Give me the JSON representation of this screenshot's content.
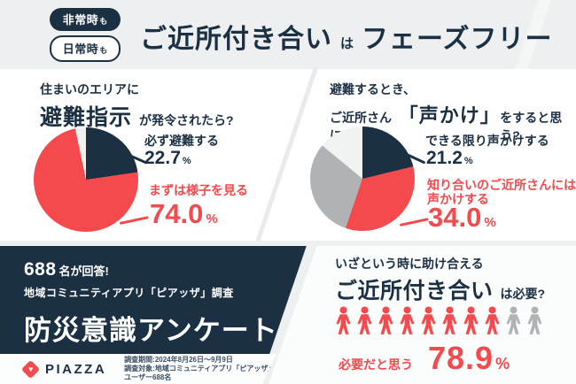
{
  "palette": {
    "navy": "#1c3044",
    "red": "#f4494d",
    "gray": "#b0b3b5",
    "light_slice": "#eff1f1",
    "page_bg": "#edeff0"
  },
  "percent_sign": "%",
  "header": {
    "badges": [
      {
        "main": "非常時",
        "suffix": "も"
      },
      {
        "main": "日常時",
        "suffix": "も"
      }
    ],
    "title": {
      "lead": "ご近所付き合い",
      "particle": "は",
      "tail": "フェーズフリー"
    }
  },
  "poll_left": {
    "question_line1": "住まいのエリアに",
    "question_strong": "避難指示",
    "question_rest": "が発令されたら?",
    "answers": {
      "a": {
        "label": "必ず避難する",
        "value_text": "22.7"
      },
      "b": {
        "label": "まずは様子を見る",
        "value_text": "74.0"
      }
    }
  },
  "poll_right": {
    "question_line1": "避難するとき、",
    "question_pre": "ご近所さんに",
    "question_strong": "「声かけ」",
    "question_rest": "をすると思う?",
    "answers": {
      "a": {
        "label": "できる限り声かけする",
        "value_text": "21.2"
      },
      "b": {
        "label_line1": "知り合いのご近所さんには",
        "label_line2": "声かけする",
        "value_text": "34.0"
      }
    }
  },
  "campaign": {
    "count": "688",
    "count_suffix": "名が回答!",
    "app_line": "地域コミュニティアプリ「ピアッザ」調査",
    "title": "防災意識アンケート"
  },
  "footer": {
    "brand": "PIAZZA",
    "survey_period": "調査期間:2024年8月26日〜9月9日",
    "survey_target": "調査対象:地域コミュニティアプリ「ピアッザ」ユーザー688名"
  },
  "need": {
    "question_line1": "いざという時に助け合える",
    "question_strong": "ご近所付き合い",
    "question_rest": "は必要?",
    "caption": "必要だと思う",
    "value_text": "78.9"
  },
  "chart_data": [
    {
      "type": "pie",
      "title": "住まいのエリアに避難指示が発令されたら?",
      "start_angle_deg": 0,
      "direction": "clockwise",
      "labels": "callout",
      "legend": "none",
      "slices": [
        {
          "label": "必ず避難する",
          "value": 22.7,
          "color": "#1c3044"
        },
        {
          "label": "まずは様子を見る",
          "value": 74.0,
          "color": "#f4494d"
        },
        {
          "label": "",
          "value": 3.3,
          "color": "#eff1f1",
          "note": "unlabeled remainder, estimated"
        }
      ]
    },
    {
      "type": "pie",
      "title": "避難するとき、ご近所さんに「声かけ」をすると思う?",
      "start_angle_deg": 0,
      "direction": "clockwise",
      "labels": "callout",
      "legend": "none",
      "slices": [
        {
          "label": "できる限り声かけする",
          "value": 21.2,
          "color": "#1c3044"
        },
        {
          "label": "知り合いのご近所さんには声かけする",
          "value": 34.0,
          "color": "#f4494d"
        },
        {
          "label": "",
          "value": 30.8,
          "color": "#b0b3b5",
          "note": "unlabeled, estimated from arc"
        },
        {
          "label": "",
          "value": 14.0,
          "color": "#f1f3f3",
          "note": "unlabeled, estimated from arc"
        }
      ]
    },
    {
      "type": "pictograph",
      "title": "いざという時に助け合えるご近所付き合いは必要?",
      "total_icons": 10,
      "highlighted_icons": 8,
      "highlight_color": "#f4494d",
      "muted_color": "#b0b3b5",
      "label": "必要だと思う",
      "value": 78.9
    }
  ]
}
